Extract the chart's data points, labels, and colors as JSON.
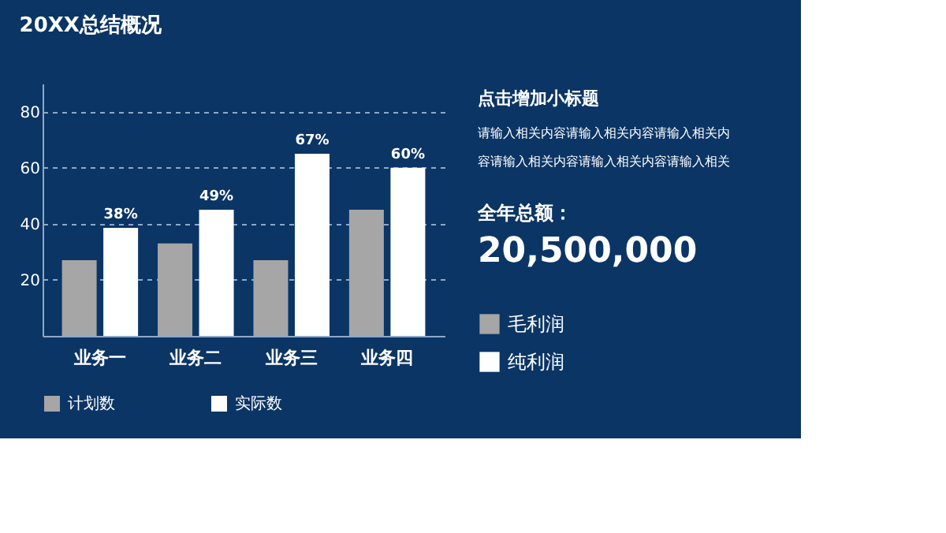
{
  "chart_data": {
    "type": "bar",
    "title": "20XX总结概况",
    "categories": [
      "业务一",
      "业务二",
      "业务三",
      "业务四"
    ],
    "series": [
      {
        "name": "计划数",
        "color": "#a6a6a6",
        "values": [
          27,
          33,
          27,
          45
        ]
      },
      {
        "name": "实际数",
        "color": "#ffffff",
        "values": [
          38.5,
          45,
          65,
          60
        ]
      }
    ],
    "ylim": [
      0,
      90
    ],
    "yticks": [
      20,
      40,
      60,
      80
    ],
    "grid": "y",
    "line_style": "dashed",
    "legend": "bottom",
    "annotations": [
      {
        "text": "38%",
        "x": "业务一",
        "y": 38.5
      },
      {
        "text": "49%",
        "x": "业务二",
        "y": 45
      },
      {
        "text": "67%",
        "x": "业务三",
        "y": 65
      },
      {
        "text": "60%",
        "x": "业务四",
        "y": 60
      },
      "点击增加小标题",
      "请输入相关内容请输入相关内容请输入相关内",
      "容请输入相关内容请输入相关内容请输入相关",
      "全年总额：",
      "20,500,000",
      "毛利润",
      "纯利润"
    ]
  }
}
